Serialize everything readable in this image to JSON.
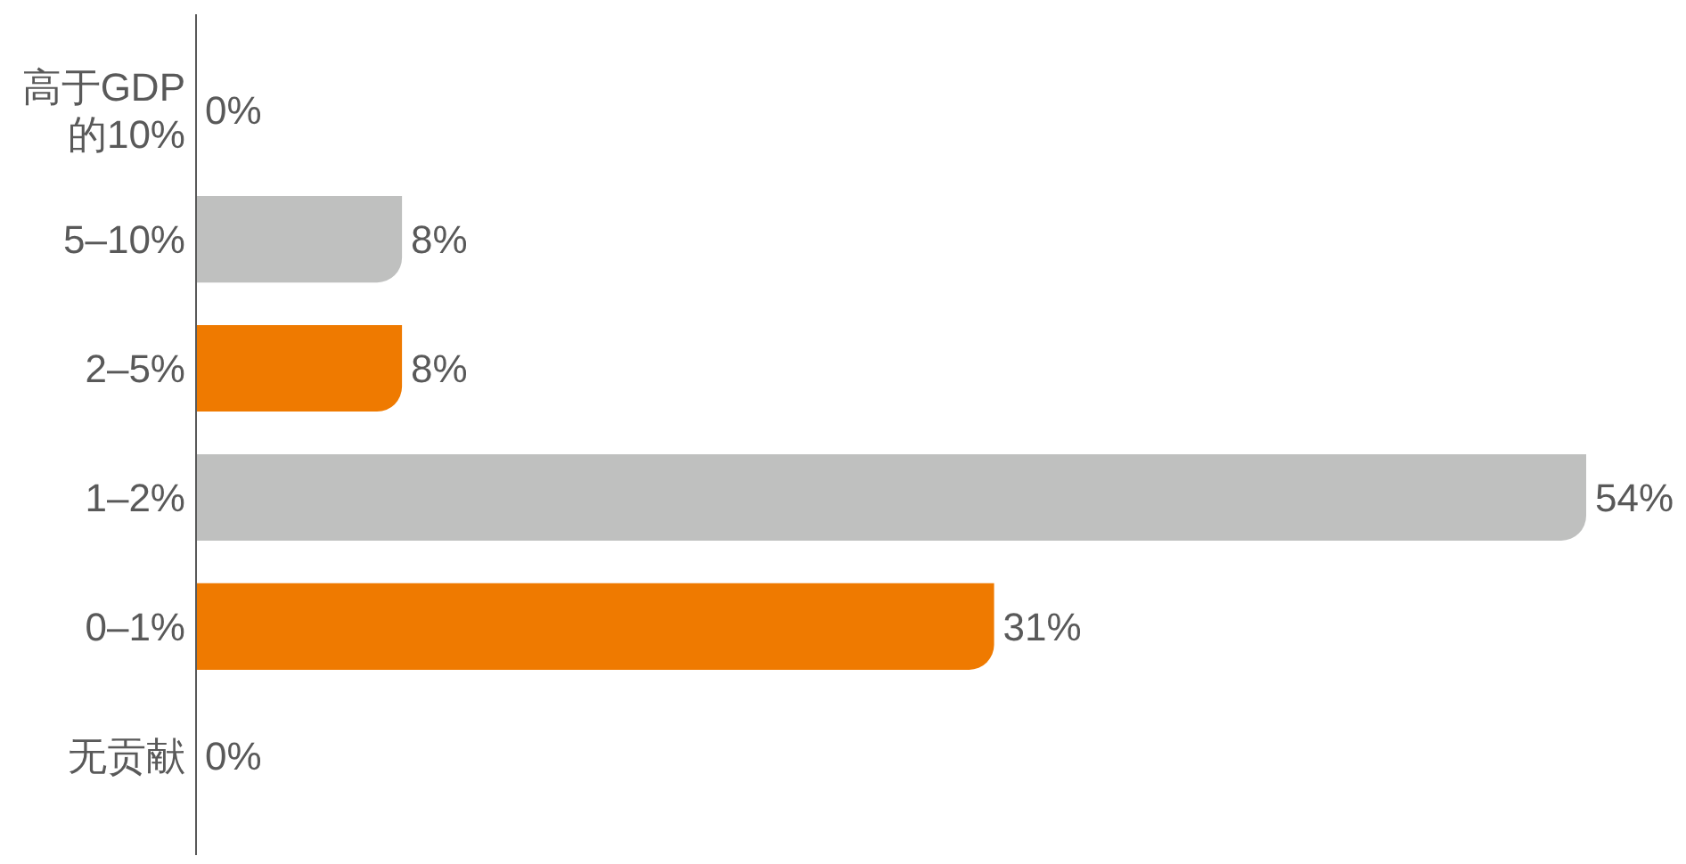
{
  "chart_data": {
    "type": "bar",
    "orientation": "horizontal",
    "categories": [
      "高于GDP的10%",
      "5–10%",
      "2–5%",
      "1–2%",
      "0–1%",
      "无贡献"
    ],
    "values": [
      0,
      8,
      8,
      54,
      31,
      0
    ],
    "colors": [
      "#ef7a00",
      "#bfc0bf",
      "#ef7a00",
      "#bfc0bf",
      "#ef7a00",
      "#bfc0bf"
    ],
    "value_labels": [
      "0%",
      "8%",
      "8%",
      "54%",
      "31%",
      "0%"
    ]
  }
}
